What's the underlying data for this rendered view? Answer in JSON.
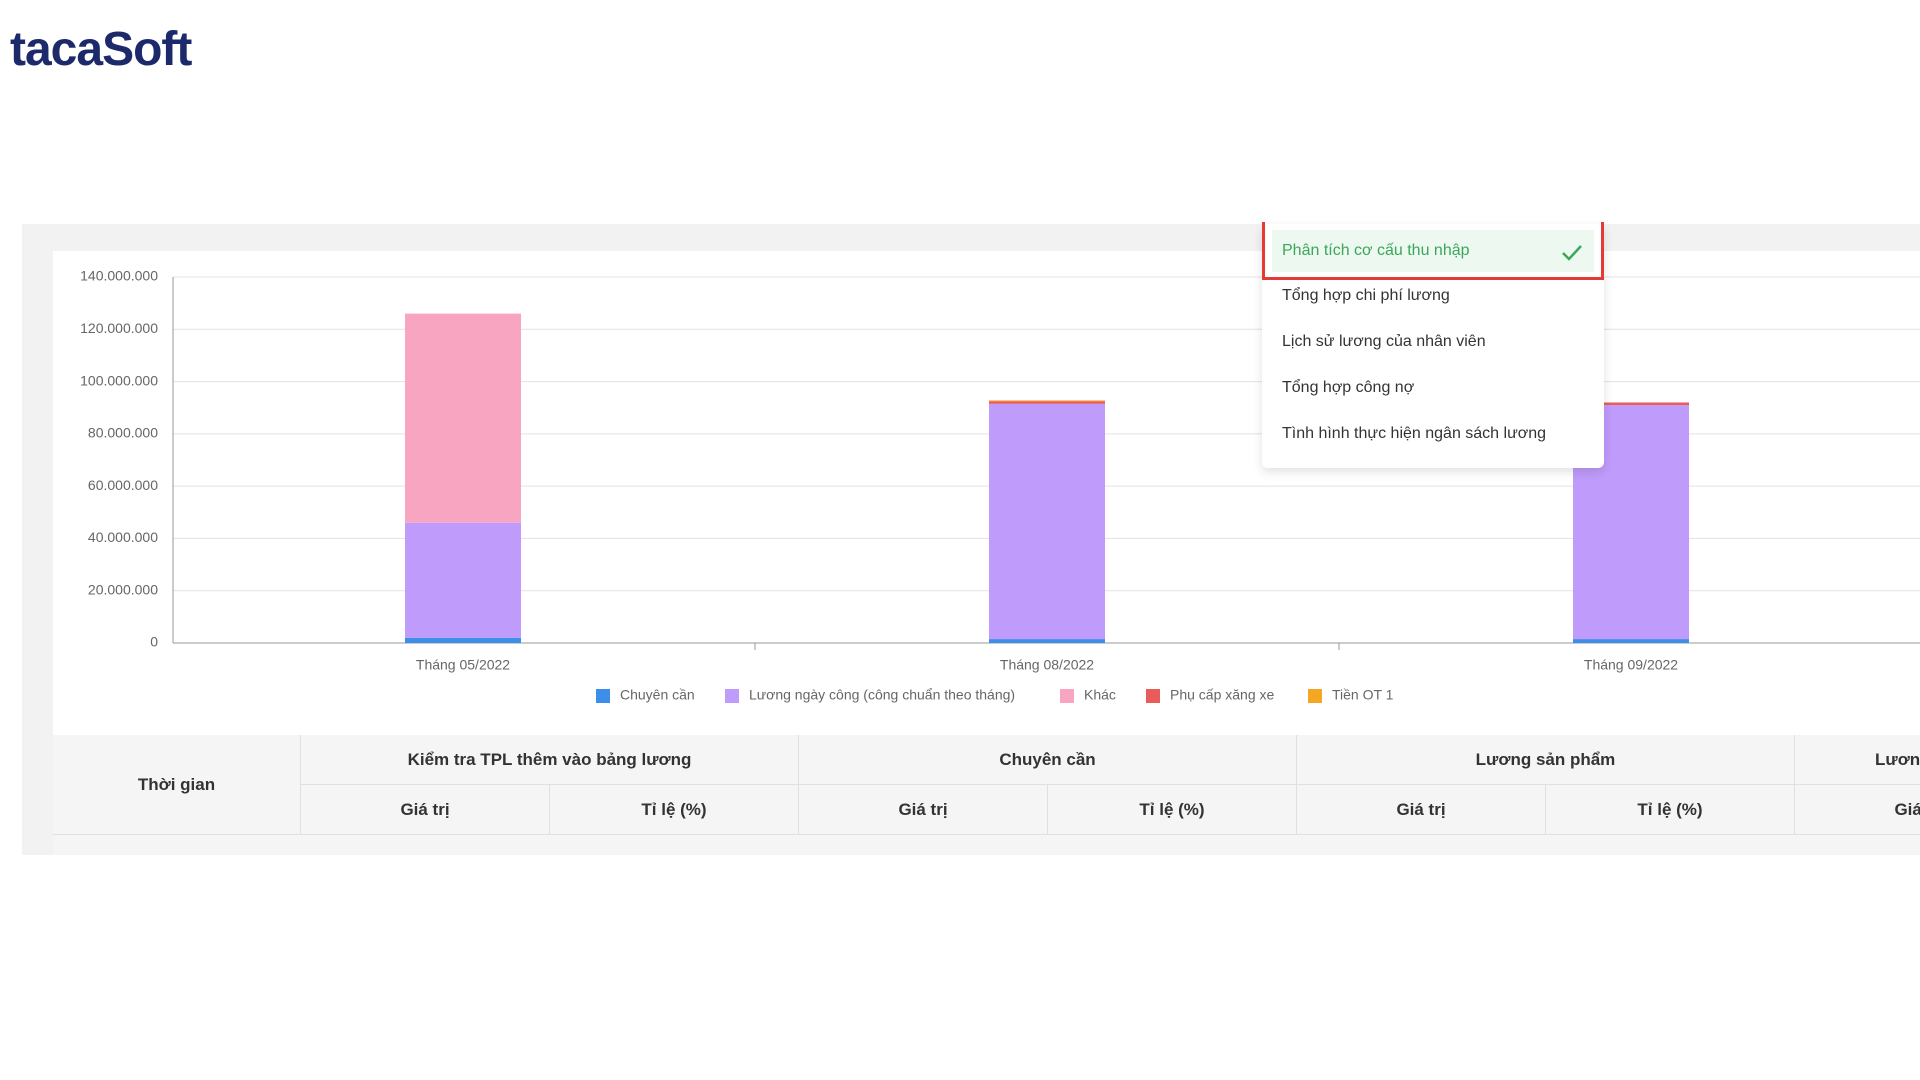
{
  "logo": {
    "text": "tacaSoft"
  },
  "chart_data": {
    "type": "stacked_bar",
    "categories": [
      "Tháng 05/2022",
      "Tháng 08/2022",
      "Tháng 09/2022"
    ],
    "series": [
      {
        "name": "Chuyên cần",
        "color": "#3d8ee9",
        "values": [
          2000000,
          1500000,
          1500000
        ]
      },
      {
        "name": "Lương ngày công (công chuẩn theo tháng)",
        "color": "#bf9bfb",
        "values": [
          44000000,
          90000000,
          89500000
        ]
      },
      {
        "name": "Khác",
        "color": "#f7a5c0",
        "values": [
          80000000,
          0,
          0
        ]
      },
      {
        "name": "Phụ cấp xăng xe",
        "color": "#ea5b5b",
        "values": [
          0,
          1000000,
          1000000
        ]
      },
      {
        "name": "Tiền OT 1",
        "color": "#f5a623",
        "values": [
          0,
          300000,
          0
        ]
      }
    ],
    "ylim": [
      0,
      140000000
    ],
    "yticks": [
      0,
      {
        "value": 20000000,
        "label": "20.000.000"
      },
      {
        "value": 40000000,
        "label": "40.000.000"
      },
      {
        "value": 60000000,
        "label": "60.000.000"
      },
      {
        "value": 80000000,
        "label": "80.000.000"
      },
      {
        "value": 100000000,
        "label": "100.000.000"
      },
      {
        "value": 120000000,
        "label": "120.000.000"
      },
      {
        "value": 140000000,
        "label": "140.000.000"
      }
    ],
    "grid": true,
    "legend": "bottom"
  },
  "table": {
    "first_header": "Thời gian",
    "groups": [
      "Kiểm tra TPL thêm vào bảng lương",
      "Chuyên cần",
      "Lương sản phẩm",
      "Lương"
    ],
    "sub_headers": [
      "Giá trị",
      "Tỉ lệ (%)"
    ]
  },
  "menu": {
    "items": [
      "Phân tích cơ cấu thu nhập",
      "Tổng hợp chi phí lương",
      "Lịch sử lương của nhân viên",
      "Tổng hợp công nợ",
      "Tình hình thực hiện ngân sách lương"
    ],
    "selected": 0
  }
}
